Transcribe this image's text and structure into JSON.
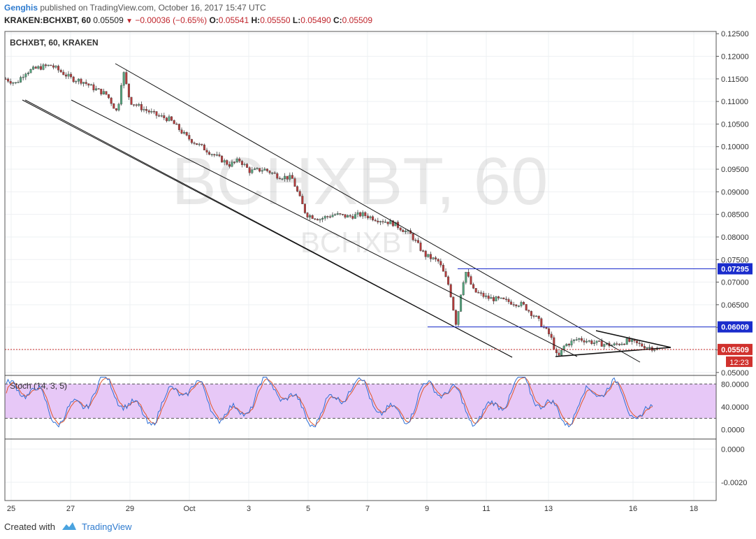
{
  "header": {
    "author": "Genghis",
    "published_text": "published on TradingView.com, October 16, 2017 15:47 UTC",
    "symbol_line": "KRAKEN:BCHXBT, 60",
    "last": "0.05509",
    "change": "−0.00036 (−0.65%)",
    "o_label": "O:",
    "o_value": "0.05541",
    "h_label": "H:",
    "h_value": "0.05550",
    "l_label": "L:",
    "l_value": "0.05490",
    "c_label": "C:",
    "c_value": "0.05509"
  },
  "footer": {
    "created_with": "Created with",
    "brand": "TradingView"
  },
  "colors": {
    "up": "#53a67e",
    "down": "#b53a3a",
    "wick": "#444444",
    "stoch_k": "#2f6fd6",
    "stoch_d": "#e0562b",
    "stoch_band": "#e7c8f7",
    "level": "#1a2ccc",
    "current": "#d0312d"
  },
  "chart_data": [
    {
      "type": "candlestick",
      "title": "BCHXBT, 60, KRAKEN",
      "watermark": "BCHXBT, 60",
      "watermark_sub": "BCHXBT",
      "ylim": [
        0.0495,
        0.1255
      ],
      "y_ticks": [
        "0.12500",
        "0.12000",
        "0.11500",
        "0.11000",
        "0.10500",
        "0.10000",
        "0.09500",
        "0.09000",
        "0.08500",
        "0.08000",
        "0.07500",
        "0.07000",
        "0.06500",
        "0.06000",
        "0.05500",
        "0.05000"
      ],
      "x_ticks": [
        "25",
        "27",
        "29",
        "Oct",
        "3",
        "5",
        "7",
        "9",
        "11",
        "13",
        "16",
        "18"
      ],
      "price_path": [
        [
          0,
          0.115
        ],
        [
          15,
          0.114
        ],
        [
          28,
          0.1165
        ],
        [
          48,
          0.1175
        ],
        [
          65,
          0.118
        ],
        [
          80,
          0.1165
        ],
        [
          95,
          0.115
        ],
        [
          110,
          0.1145
        ],
        [
          125,
          0.113
        ],
        [
          145,
          0.1115
        ],
        [
          160,
          0.1075
        ],
        [
          168,
          0.117
        ],
        [
          178,
          0.11
        ],
        [
          195,
          0.1085
        ],
        [
          215,
          0.107
        ],
        [
          235,
          0.106
        ],
        [
          260,
          0.102
        ],
        [
          290,
          0.099
        ],
        [
          320,
          0.096
        ],
        [
          335,
          0.097
        ],
        [
          350,
          0.0945
        ],
        [
          370,
          0.095
        ],
        [
          390,
          0.0935
        ],
        [
          410,
          0.093
        ],
        [
          430,
          0.085
        ],
        [
          450,
          0.084
        ],
        [
          470,
          0.085
        ],
        [
          490,
          0.0845
        ],
        [
          510,
          0.085
        ],
        [
          530,
          0.084
        ],
        [
          555,
          0.083
        ],
        [
          580,
          0.0805
        ],
        [
          600,
          0.076
        ],
        [
          620,
          0.0745
        ],
        [
          635,
          0.069
        ],
        [
          645,
          0.0605
        ],
        [
          652,
          0.068
        ],
        [
          658,
          0.0725
        ],
        [
          670,
          0.068
        ],
        [
          690,
          0.0665
        ],
        [
          710,
          0.066
        ],
        [
          740,
          0.065
        ],
        [
          760,
          0.062
        ],
        [
          780,
          0.058
        ],
        [
          790,
          0.053
        ],
        [
          800,
          0.056
        ],
        [
          820,
          0.0575
        ],
        [
          845,
          0.0565
        ],
        [
          870,
          0.056
        ],
        [
          890,
          0.057
        ],
        [
          910,
          0.056
        ],
        [
          935,
          0.0551
        ]
      ],
      "levels": [
        {
          "label": "0.07295",
          "value": 0.07295
        },
        {
          "label": "0.06009",
          "value": 0.06009
        },
        {
          "label": "0.05509",
          "value": 0.05509
        }
      ],
      "timer": "12:23"
    },
    {
      "type": "line",
      "title": "Stoch (14, 3, 5)",
      "ylim": [
        -15,
        95
      ],
      "y_ticks": [
        "80.0000",
        "40.0000",
        "0.0000"
      ],
      "bands": [
        20,
        80
      ]
    },
    {
      "type": "line",
      "ylim": [
        -0.0031,
        0.0006
      ],
      "y_ticks": [
        "0.0000",
        "-0.0020"
      ]
    }
  ]
}
